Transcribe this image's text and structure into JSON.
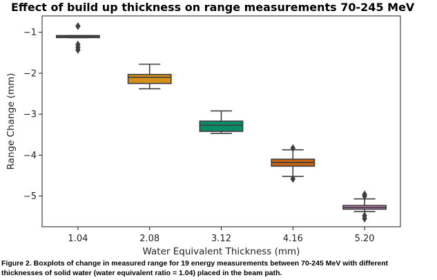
{
  "chart_data": {
    "type": "box",
    "title": "Effect of build up thickness on range measurements 70-245 MeV",
    "xlabel": "Water Equivalent Thickness (mm)",
    "ylabel": "Range Change (mm)",
    "categories": [
      "1.04",
      "2.08",
      "3.12",
      "4.16",
      "5.20"
    ],
    "yticks": [
      -1,
      -2,
      -3,
      -4,
      -5
    ],
    "ytick_labels": [
      "−1",
      "−2",
      "−3",
      "−4",
      "−5"
    ],
    "ylim": [
      -5.75,
      -0.6
    ],
    "grid": false,
    "boxes": [
      {
        "category": "1.04",
        "color": "#3b3b3b",
        "whisker_low": -1.13,
        "q1": -1.13,
        "median": -1.1,
        "q3": -1.08,
        "whisker_high": -1.08,
        "outliers": [
          -0.85,
          -1.3,
          -1.37,
          -1.43
        ]
      },
      {
        "category": "2.08",
        "color": "#d4901b",
        "whisker_low": -2.38,
        "q1": -2.25,
        "median": -2.1,
        "q3": -2.03,
        "whisker_high": -1.78,
        "outliers": []
      },
      {
        "category": "3.12",
        "color": "#0a8a67",
        "whisker_low": -3.47,
        "q1": -3.42,
        "median": -3.27,
        "q3": -3.17,
        "whisker_high": -2.92,
        "outliers": []
      },
      {
        "category": "4.16",
        "color": "#c8640f",
        "whisker_low": -4.52,
        "q1": -4.27,
        "median": -4.18,
        "q3": -4.1,
        "whisker_high": -3.87,
        "outliers": [
          -3.83,
          -4.58
        ]
      },
      {
        "category": "5.20",
        "color": "#c77ab6",
        "whisker_low": -5.38,
        "q1": -5.32,
        "median": -5.28,
        "q3": -5.23,
        "whisker_high": -5.07,
        "outliers": [
          -4.96,
          -5.0,
          -5.48,
          -5.55
        ]
      }
    ]
  },
  "caption": {
    "text": "Figure 2. Boxplots of change in measured range for 19 energy measurements between 70-245 MeV with different thicknesses of solid water (water equivalent ratio = 1.04) placed in the beam path."
  }
}
